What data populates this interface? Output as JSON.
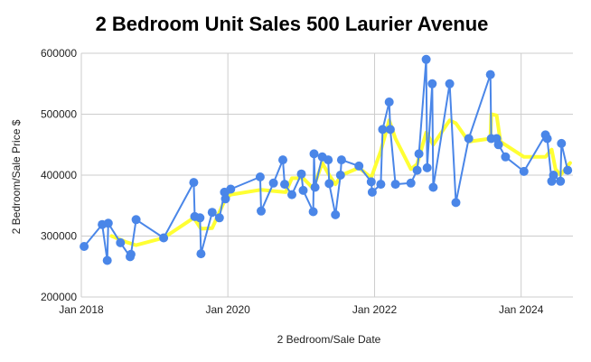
{
  "chart_data": {
    "type": "line",
    "title": "2 Bedroom Unit Sales 500 Laurier Avenue",
    "xlabel": "2 Bedroom/Sale Date",
    "ylabel": "2 Bedroom/Sale Price $",
    "x_ticks": [
      "Jan 2018",
      "Jan 2020",
      "Jan 2022",
      "Jan 2024"
    ],
    "y_ticks": [
      "200000",
      "300000",
      "400000",
      "500000",
      "600000"
    ],
    "xlim": [
      "2018-01-01",
      "2024-09-15"
    ],
    "ylim": [
      200000,
      600000
    ],
    "grid": true,
    "legend": "none",
    "colors": {
      "sales": "#4a86e8",
      "trend": "#ffff33",
      "grid": "#cccccc"
    },
    "series": [
      {
        "role": "sales",
        "points": [
          [
            "2018-01-15",
            283000
          ],
          [
            "2018-04-15",
            319000
          ],
          [
            "2018-05-10",
            260000
          ],
          [
            "2018-05-15",
            321000
          ],
          [
            "2018-07-15",
            289000
          ],
          [
            "2018-09-01",
            266000
          ],
          [
            "2018-09-05",
            270000
          ],
          [
            "2018-10-01",
            327000
          ],
          [
            "2019-02-15",
            297000
          ],
          [
            "2019-07-15",
            388000
          ],
          [
            "2019-07-20",
            332000
          ],
          [
            "2019-08-15",
            330000
          ],
          [
            "2019-08-20",
            271000
          ],
          [
            "2019-10-15",
            339000
          ],
          [
            "2019-11-20",
            330000
          ],
          [
            "2019-12-15",
            372000
          ],
          [
            "2019-12-20",
            361000
          ],
          [
            "2020-01-15",
            377000
          ],
          [
            "2020-06-10",
            397000
          ],
          [
            "2020-06-15",
            341000
          ],
          [
            "2020-08-15",
            387000
          ],
          [
            "2020-10-01",
            425000
          ],
          [
            "2020-10-10",
            385000
          ],
          [
            "2020-11-15",
            368000
          ],
          [
            "2021-01-01",
            402000
          ],
          [
            "2021-01-10",
            375000
          ],
          [
            "2021-03-01",
            340000
          ],
          [
            "2021-03-05",
            435000
          ],
          [
            "2021-03-10",
            380000
          ],
          [
            "2021-04-15",
            430000
          ],
          [
            "2021-05-15",
            425000
          ],
          [
            "2021-05-20",
            386000
          ],
          [
            "2021-06-20",
            335000
          ],
          [
            "2021-07-15",
            400000
          ],
          [
            "2021-07-20",
            425000
          ],
          [
            "2021-10-15",
            415000
          ],
          [
            "2021-12-15",
            389000
          ],
          [
            "2021-12-20",
            372000
          ],
          [
            "2022-02-01",
            385000
          ],
          [
            "2022-02-10",
            475000
          ],
          [
            "2022-03-15",
            520000
          ],
          [
            "2022-03-20",
            475000
          ],
          [
            "2022-04-15",
            385000
          ],
          [
            "2022-07-01",
            387000
          ],
          [
            "2022-08-01",
            408000
          ],
          [
            "2022-08-10",
            435000
          ],
          [
            "2022-09-15",
            590000
          ],
          [
            "2022-09-20",
            412000
          ],
          [
            "2022-10-15",
            550000
          ],
          [
            "2022-10-20",
            380000
          ],
          [
            "2023-01-10",
            550000
          ],
          [
            "2023-02-10",
            355000
          ],
          [
            "2023-04-15",
            460000
          ],
          [
            "2023-08-01",
            565000
          ],
          [
            "2023-08-05",
            460000
          ],
          [
            "2023-09-01",
            460000
          ],
          [
            "2023-09-10",
            450000
          ],
          [
            "2023-10-15",
            430000
          ],
          [
            "2024-01-15",
            406000
          ],
          [
            "2024-05-01",
            466000
          ],
          [
            "2024-05-10",
            460000
          ],
          [
            "2024-06-01",
            390000
          ],
          [
            "2024-06-10",
            400000
          ],
          [
            "2024-07-15",
            390000
          ],
          [
            "2024-07-20",
            452000
          ],
          [
            "2024-08-20",
            408000
          ]
        ]
      },
      {
        "role": "trend",
        "points": [
          [
            "2018-06-01",
            300000
          ],
          [
            "2018-08-15",
            290000
          ],
          [
            "2018-10-01",
            285000
          ],
          [
            "2019-02-15",
            297000
          ],
          [
            "2019-07-15",
            330000
          ],
          [
            "2019-08-20",
            312000
          ],
          [
            "2019-10-15",
            313000
          ],
          [
            "2019-12-20",
            361000
          ],
          [
            "2020-01-15",
            368000
          ],
          [
            "2020-06-15",
            376000
          ],
          [
            "2020-08-15",
            374000
          ],
          [
            "2020-10-15",
            372000
          ],
          [
            "2020-11-15",
            395000
          ],
          [
            "2021-01-10",
            395000
          ],
          [
            "2021-03-01",
            378000
          ],
          [
            "2021-04-15",
            420000
          ],
          [
            "2021-05-20",
            400000
          ],
          [
            "2021-06-20",
            385000
          ],
          [
            "2021-07-20",
            400000
          ],
          [
            "2021-10-15",
            412000
          ],
          [
            "2021-12-15",
            396000
          ],
          [
            "2022-02-01",
            440000
          ],
          [
            "2022-03-15",
            490000
          ],
          [
            "2022-04-15",
            460000
          ],
          [
            "2022-07-01",
            410000
          ],
          [
            "2022-08-01",
            418000
          ],
          [
            "2022-09-15",
            470000
          ],
          [
            "2022-10-20",
            450000
          ],
          [
            "2023-01-10",
            490000
          ],
          [
            "2023-02-10",
            485000
          ],
          [
            "2023-04-15",
            455000
          ],
          [
            "2023-08-01",
            460000
          ],
          [
            "2023-08-05",
            500000
          ],
          [
            "2023-09-01",
            498000
          ],
          [
            "2023-09-20",
            455000
          ],
          [
            "2024-01-15",
            430000
          ],
          [
            "2024-05-01",
            430000
          ],
          [
            "2024-06-01",
            442000
          ],
          [
            "2024-06-20",
            410000
          ],
          [
            "2024-07-15",
            400000
          ],
          [
            "2024-09-01",
            420000
          ]
        ]
      }
    ]
  }
}
